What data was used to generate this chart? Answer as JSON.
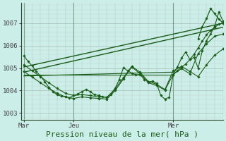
{
  "background_color": "#cceee8",
  "line_color": "#1a5c1a",
  "xlabel": "Pression niveau de la mer( hPa )",
  "xlabel_fontsize": 8,
  "xtick_labels": [
    "Mar",
    "Jeu",
    "Mer"
  ],
  "xtick_positions": [
    0,
    36,
    108
  ],
  "ylim": [
    1002.7,
    1007.9
  ],
  "yticks": [
    1003,
    1004,
    1005,
    1006,
    1007
  ],
  "xlim": [
    -2,
    144
  ],
  "vline_positions": [
    0,
    36,
    108
  ],
  "trend1_x": [
    0,
    144
  ],
  "trend1_y": [
    1005.05,
    1007.0
  ],
  "trend2_x": [
    0,
    144
  ],
  "trend2_y": [
    1004.82,
    1006.82
  ],
  "trend3_x": [
    0,
    108
  ],
  "trend3_y": [
    1004.72,
    1004.72
  ],
  "trend4_x": [
    0,
    108
  ],
  "trend4_y": [
    1004.65,
    1004.82
  ],
  "line1_x": [
    0,
    3,
    6,
    9,
    12,
    15,
    18,
    21,
    24,
    27,
    30,
    33,
    36,
    39,
    42,
    45,
    48,
    51,
    54,
    57,
    60,
    63,
    66,
    69,
    72,
    75,
    78,
    81,
    84,
    87,
    90,
    93,
    96,
    99,
    102,
    105,
    108,
    111,
    114,
    117,
    120,
    123,
    126,
    129,
    132,
    135,
    138,
    141,
    144
  ],
  "line1_y": [
    1005.55,
    1005.3,
    1005.1,
    1004.85,
    1004.65,
    1004.4,
    1004.15,
    1003.95,
    1003.82,
    1003.75,
    1003.72,
    1003.68,
    1003.78,
    1003.85,
    1003.95,
    1004.05,
    1003.95,
    1003.82,
    1003.78,
    1003.72,
    1003.7,
    1003.82,
    1004.1,
    1004.5,
    1005.02,
    1004.88,
    1004.78,
    1004.7,
    1004.72,
    1004.5,
    1004.38,
    1004.42,
    1004.32,
    1003.78,
    1003.62,
    1003.7,
    1004.72,
    1004.88,
    1005.05,
    1005.18,
    1005.38,
    1005.62,
    1005.9,
    1006.2,
    1006.48,
    1006.68,
    1006.82,
    1006.95,
    1007.0
  ],
  "line2_x": [
    0,
    6,
    12,
    18,
    24,
    30,
    36,
    42,
    48,
    54,
    60,
    66,
    72,
    78,
    84,
    90,
    96,
    102,
    108,
    114,
    120,
    126,
    132,
    138,
    144
  ],
  "line2_y": [
    1005.15,
    1004.88,
    1004.62,
    1004.35,
    1004.1,
    1003.88,
    1003.78,
    1003.82,
    1003.78,
    1003.72,
    1003.7,
    1004.08,
    1004.58,
    1005.08,
    1004.82,
    1004.4,
    1004.28,
    1004.05,
    1004.88,
    1005.08,
    1004.85,
    1004.62,
    1005.15,
    1005.58,
    1005.85
  ],
  "line3_x": [
    0,
    6,
    12,
    18,
    24,
    30,
    36,
    42,
    48,
    54,
    60,
    66,
    72,
    78,
    84,
    90,
    96,
    102,
    108,
    114,
    120,
    126,
    132,
    138,
    144
  ],
  "line3_y": [
    1004.85,
    1004.6,
    1004.35,
    1004.1,
    1003.88,
    1003.72,
    1003.65,
    1003.72,
    1003.68,
    1003.65,
    1003.62,
    1004.0,
    1004.52,
    1005.05,
    1004.75,
    1004.35,
    1004.22,
    1004.02,
    1004.72,
    1004.98,
    1004.75,
    1005.65,
    1006.08,
    1006.42,
    1006.52
  ],
  "spike_x": [
    108,
    111,
    114,
    117,
    120,
    123,
    126,
    129,
    132,
    135,
    138,
    141,
    144
  ],
  "spike_y": [
    1004.72,
    1005.05,
    1005.45,
    1005.72,
    1005.38,
    1005.48,
    1005.0,
    1005.78,
    1006.22,
    1006.52,
    1006.88,
    1007.5,
    1007.08
  ],
  "big_spike_x": [
    126,
    129,
    132,
    135,
    138,
    141,
    144
  ],
  "big_spike_y": [
    1006.3,
    1006.85,
    1007.2,
    1007.65,
    1007.42,
    1007.18,
    1007.0
  ]
}
